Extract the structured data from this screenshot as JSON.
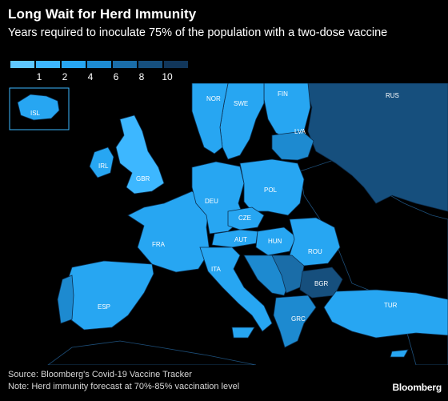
{
  "header": {
    "title": "Long Wait for Herd Immunity",
    "subtitle": "Years required to inoculate 75% of the population with a two-dose vaccine"
  },
  "legend": {
    "ticks": [
      "1",
      "2",
      "4",
      "6",
      "8",
      "10"
    ],
    "colors": [
      "#5fc8ff",
      "#3db7ff",
      "#27a6f2",
      "#1d8ad0",
      "#1a6da8",
      "#164f7d",
      "#11365a"
    ]
  },
  "map": {
    "colors": {
      "ocean": "#000000",
      "no_data": "#000000",
      "border": "#2a5a84"
    },
    "countries": [
      {
        "code": "ISL",
        "color": "#27a6f2"
      },
      {
        "code": "NOR",
        "color": "#27a6f2"
      },
      {
        "code": "SWE",
        "color": "#27a6f2"
      },
      {
        "code": "FIN",
        "color": "#27a6f2"
      },
      {
        "code": "RUS",
        "color": "#164f7d"
      },
      {
        "code": "LVA",
        "color": "#1d8ad0"
      },
      {
        "code": "IRL",
        "color": "#27a6f2"
      },
      {
        "code": "GBR",
        "color": "#3db7ff"
      },
      {
        "code": "DEU",
        "color": "#27a6f2"
      },
      {
        "code": "POL",
        "color": "#27a6f2"
      },
      {
        "code": "CZE",
        "color": "#27a6f2"
      },
      {
        "code": "FRA",
        "color": "#27a6f2"
      },
      {
        "code": "AUT",
        "color": "#27a6f2"
      },
      {
        "code": "HUN",
        "color": "#27a6f2"
      },
      {
        "code": "ROU",
        "color": "#27a6f2"
      },
      {
        "code": "ITA",
        "color": "#27a6f2"
      },
      {
        "code": "BGR",
        "color": "#164f7d"
      },
      {
        "code": "ESP",
        "color": "#27a6f2"
      },
      {
        "code": "GRC",
        "color": "#1d8ad0"
      },
      {
        "code": "TUR",
        "color": "#27a6f2"
      }
    ]
  },
  "footer": {
    "source": "Source: Bloomberg's Covid-19 Vaccine Tracker",
    "note": "Note: Herd immunity forecast at 70%-85% vaccination level",
    "brand": "Bloomberg"
  }
}
